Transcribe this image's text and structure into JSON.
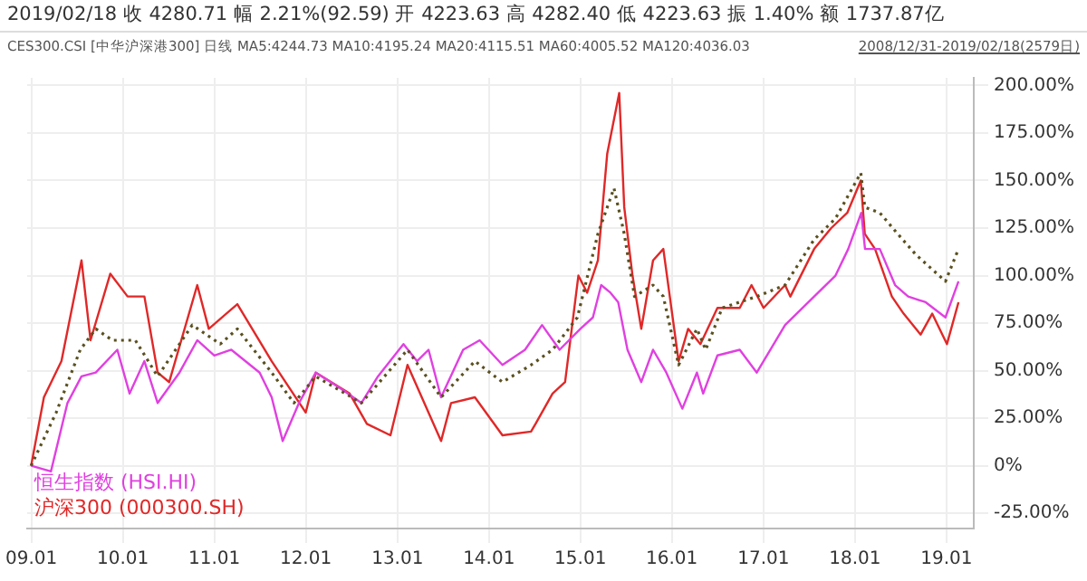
{
  "chart_data": {
    "type": "line",
    "title": "2019/02/18 收 4280.71 幅 2.21%(92.59) 开 4223.63 高 4282.40 低 4223.63 振 1.40% 额 1737.87亿",
    "subtitle": "CES300.CSI [中华沪深港300] 日线 MA5:4244.73 MA10:4195.24 MA20:4115.51 MA60:4005.52 MA120:4036.03",
    "annotations": [
      "2008/12/31-2019/02/18(2579日)"
    ],
    "series": [
      {
        "color": "#5a5020",
        "line_style": "dotted",
        "x": [
          "2008-12-31",
          "2009-04-10",
          "2009-07-15",
          "2009-09-15",
          "2009-11-20",
          "2010-02-20",
          "2010-05-20",
          "2010-10-05",
          "2011-01-25",
          "2011-04-03",
          "2011-08-18",
          "2011-11-15",
          "2012-02-10",
          "2012-08-10",
          "2013-02-10",
          "2013-06-24",
          "2013-11-06",
          "2014-02-24",
          "2014-06-18",
          "2014-09-12",
          "2014-12-20",
          "2015-03-12",
          "2015-05-15",
          "2015-06-25",
          "2015-08-05",
          "2015-10-18",
          "2015-11-28",
          "2016-01-28",
          "2016-04-10",
          "2016-05-15",
          "2016-07-20",
          "2016-12-05",
          "2017-03-28",
          "2017-07-22",
          "2017-10-15",
          "2018-01-24",
          "2018-02-09",
          "2018-04-10",
          "2018-06-20",
          "2018-09-01",
          "2018-12-28",
          "2019-02-18"
        ],
        "values": [
          0,
          28,
          61,
          72,
          66,
          66,
          47,
          74,
          64,
          72,
          49,
          33,
          47,
          33,
          61,
          36,
          55,
          44,
          53,
          61,
          78,
          122,
          146,
          122,
          89,
          95,
          89,
          53,
          72,
          61,
          83,
          89,
          95,
          119,
          130,
          154,
          136,
          133,
          122,
          111,
          97,
          114
        ]
      },
      {
        "name": "恒生指数 (HSI.HI)",
        "color": "#e040e0",
        "x": [
          "2008-12-31",
          "2009-03-20",
          "2009-05-25",
          "2009-07-20",
          "2009-09-15",
          "2009-12-10",
          "2010-01-28",
          "2010-03-28",
          "2010-05-20",
          "2010-08-15",
          "2010-10-25",
          "2011-01-01",
          "2011-03-10",
          "2011-07-01",
          "2011-08-18",
          "2011-10-01",
          "2011-12-05",
          "2012-02-10",
          "2012-05-15",
          "2012-08-10",
          "2012-10-15",
          "2013-01-25",
          "2013-03-20",
          "2013-05-05",
          "2013-06-24",
          "2013-09-20",
          "2013-11-25",
          "2014-02-24",
          "2014-05-25",
          "2014-08-01",
          "2014-10-10",
          "2015-01-01",
          "2015-02-20",
          "2015-03-25",
          "2015-05-01",
          "2015-06-01",
          "2015-07-08",
          "2015-09-01",
          "2015-10-18",
          "2015-12-10",
          "2016-02-12",
          "2016-04-10",
          "2016-05-05",
          "2016-07-01",
          "2016-09-28",
          "2016-12-05",
          "2017-03-28",
          "2017-07-22",
          "2017-10-15",
          "2017-12-05",
          "2018-01-26",
          "2018-02-10",
          "2018-04-10",
          "2018-06-10",
          "2018-08-01",
          "2018-10-10",
          "2018-12-28",
          "2019-02-18"
        ],
        "values": [
          0,
          -3,
          33,
          47,
          49,
          61,
          38,
          55,
          33,
          49,
          66,
          58,
          61,
          49,
          36,
          13,
          33,
          49,
          41,
          33,
          47,
          64,
          55,
          61,
          36,
          61,
          66,
          53,
          61,
          74,
          61,
          72,
          78,
          95,
          91,
          86,
          61,
          44,
          61,
          49,
          30,
          49,
          38,
          58,
          61,
          49,
          74,
          89,
          100,
          114,
          133,
          114,
          114,
          95,
          89,
          86,
          78,
          97
        ]
      },
      {
        "name": "沪深300 (000300.SH)",
        "color": "#e02828",
        "x": [
          "2008-12-31",
          "2009-02-20",
          "2009-05-01",
          "2009-07-20",
          "2009-08-25",
          "2009-11-12",
          "2010-01-20",
          "2010-03-28",
          "2010-05-20",
          "2010-07-05",
          "2010-10-25",
          "2010-12-10",
          "2011-04-03",
          "2011-08-18",
          "2012-01-01",
          "2012-02-10",
          "2012-06-24",
          "2012-09-01",
          "2012-12-04",
          "2013-02-10",
          "2013-04-18",
          "2013-06-24",
          "2013-08-03",
          "2013-11-06",
          "2014-02-24",
          "2014-06-18",
          "2014-07-06",
          "2014-09-12",
          "2014-11-01",
          "2014-12-24",
          "2015-01-28",
          "2015-03-12",
          "2015-04-18",
          "2015-06-05",
          "2015-06-25",
          "2015-07-28",
          "2015-09-01",
          "2015-10-18",
          "2015-11-28",
          "2016-01-28",
          "2016-03-06",
          "2016-04-24",
          "2016-07-01",
          "2016-09-28",
          "2016-11-14",
          "2017-01-01",
          "2017-03-28",
          "2017-04-18",
          "2017-07-22",
          "2017-09-28",
          "2017-12-01",
          "2018-01-24",
          "2018-02-09",
          "2018-03-22",
          "2018-05-28",
          "2018-07-14",
          "2018-09-20",
          "2018-11-05",
          "2019-01-03",
          "2019-02-18"
        ],
        "values": [
          0,
          36,
          55,
          108,
          66,
          101,
          89,
          89,
          49,
          44,
          95,
          72,
          85,
          55,
          28,
          49,
          38,
          22,
          16,
          53,
          33,
          13,
          33,
          36,
          16,
          18,
          22,
          38,
          44,
          100,
          91,
          108,
          164,
          196,
          136,
          100,
          72,
          108,
          114,
          55,
          72,
          64,
          83,
          83,
          95,
          83,
          95,
          89,
          114,
          125,
          133,
          150,
          122,
          114,
          89,
          80,
          69,
          80,
          64,
          86
        ]
      }
    ],
    "xlim": [
      "2008-12-15",
      "2019-04-20"
    ],
    "xticks": [
      {
        "value": "2009-01-01",
        "label": "09.01"
      },
      {
        "value": "2010-01-01",
        "label": "10.01"
      },
      {
        "value": "2011-01-01",
        "label": "11.01"
      },
      {
        "value": "2012-01-01",
        "label": "12.01"
      },
      {
        "value": "2013-01-01",
        "label": "13.01"
      },
      {
        "value": "2014-01-01",
        "label": "14.01"
      },
      {
        "value": "2015-01-01",
        "label": "15.01"
      },
      {
        "value": "2016-01-01",
        "label": "16.01"
      },
      {
        "value": "2017-01-01",
        "label": "17.01"
      },
      {
        "value": "2018-01-01",
        "label": "18.01"
      },
      {
        "value": "2019-01-01",
        "label": "19.01"
      }
    ],
    "ylim": [
      -33,
      204
    ],
    "yticks": [
      {
        "value": -25,
        "label": "-25.00%"
      },
      {
        "value": 0,
        "label": "0%"
      },
      {
        "value": 25,
        "label": "25.00%"
      },
      {
        "value": 50,
        "label": "50.00%"
      },
      {
        "value": 75,
        "label": "75.00%"
      },
      {
        "value": 100,
        "label": "100.00%"
      },
      {
        "value": 125,
        "label": "125.00%"
      },
      {
        "value": 150,
        "label": "150.00%"
      },
      {
        "value": 175,
        "label": "175.00%"
      },
      {
        "value": 200,
        "label": "200.00%"
      }
    ],
    "grid": true,
    "legend": "bottom left",
    "marker": "none"
  }
}
